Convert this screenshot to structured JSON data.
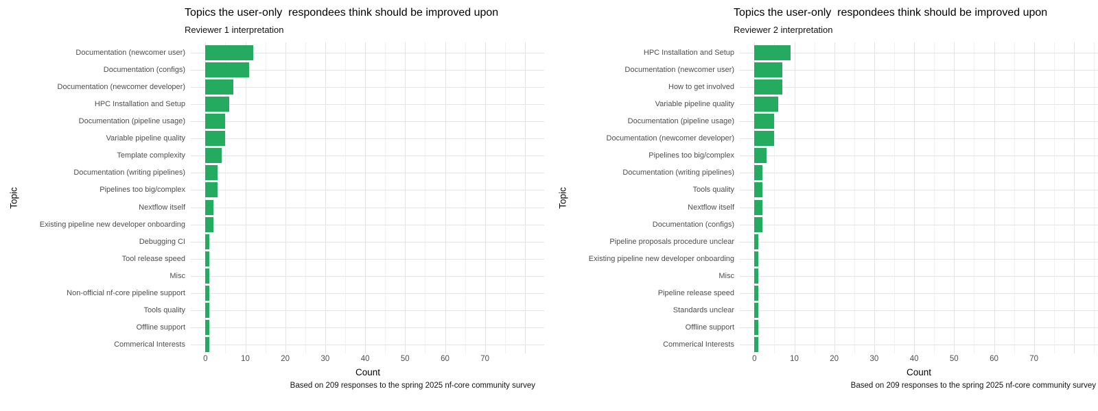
{
  "figure": {
    "background_color": "#ffffff",
    "bar_color": "#24ab5f",
    "grid_major_color": "#e4e4e4",
    "grid_minor_color": "#f1f1f1"
  },
  "chart_data": [
    {
      "type": "bar",
      "orientation": "horizontal",
      "title": "Topics the user-only  respondees think should be improved upon",
      "subtitle": "Reviewer 1 interpretation",
      "xlabel": "Count",
      "ylabel": "Topic",
      "caption": "Based on 209 responses to the spring 2025 nf-core community survey",
      "categories": [
        "Documentation (newcomer user)",
        "Documentation (configs)",
        "Documentation (newcomer developer)",
        "HPC Installation and Setup",
        "Documentation (pipeline usage)",
        "Variable pipeline quality",
        "Template complexity",
        "Documentation (writing pipelines)",
        "Pipelines too big/complex",
        "Nextflow itself",
        "Existing pipeline new developer onboarding",
        "Debugging CI",
        "Tool release speed",
        "Misc",
        "Non-official nf-core pipeline support",
        "Tools quality",
        "Offline support",
        "Commerical Interests"
      ],
      "values": [
        12,
        11,
        7,
        6,
        5,
        5,
        4,
        3,
        3,
        2,
        2,
        1,
        1,
        1,
        1,
        1,
        1,
        1
      ],
      "xticks": [
        0,
        10,
        20,
        30,
        40,
        50,
        60,
        70
      ],
      "xlim": [
        0,
        84
      ],
      "grid": true,
      "legend": false,
      "bar_color": "#24ab5f"
    },
    {
      "type": "bar",
      "orientation": "horizontal",
      "title": "Topics the user-only  respondees think should be improved upon",
      "subtitle": "Reviewer 2 interpretation",
      "xlabel": "Count",
      "ylabel": "Topic",
      "caption": "Based on 209 responses to the spring 2025 nf-core community survey",
      "categories": [
        "HPC Installation and Setup",
        "Documentation (newcomer user)",
        "How to get involved",
        "Variable pipeline quality",
        "Documentation (pipeline usage)",
        "Documentation (newcomer developer)",
        "Pipelines too big/complex",
        "Documentation (writing pipelines)",
        "Tools quality",
        "Nextflow itself",
        "Documentation (configs)",
        "Pipeline proposals procedure unclear",
        "Existing pipeline new developer onboarding",
        "Misc",
        "Pipeline release speed",
        "Standards unclear",
        "Offline support",
        "Commerical Interests"
      ],
      "values": [
        9,
        7,
        7,
        6,
        5,
        5,
        3,
        2,
        2,
        2,
        2,
        1,
        1,
        1,
        1,
        1,
        1,
        1
      ],
      "xticks": [
        0,
        10,
        20,
        30,
        40,
        50,
        60,
        70
      ],
      "xlim": [
        0,
        87
      ],
      "grid": true,
      "legend": false,
      "bar_color": "#24ab5f"
    }
  ]
}
